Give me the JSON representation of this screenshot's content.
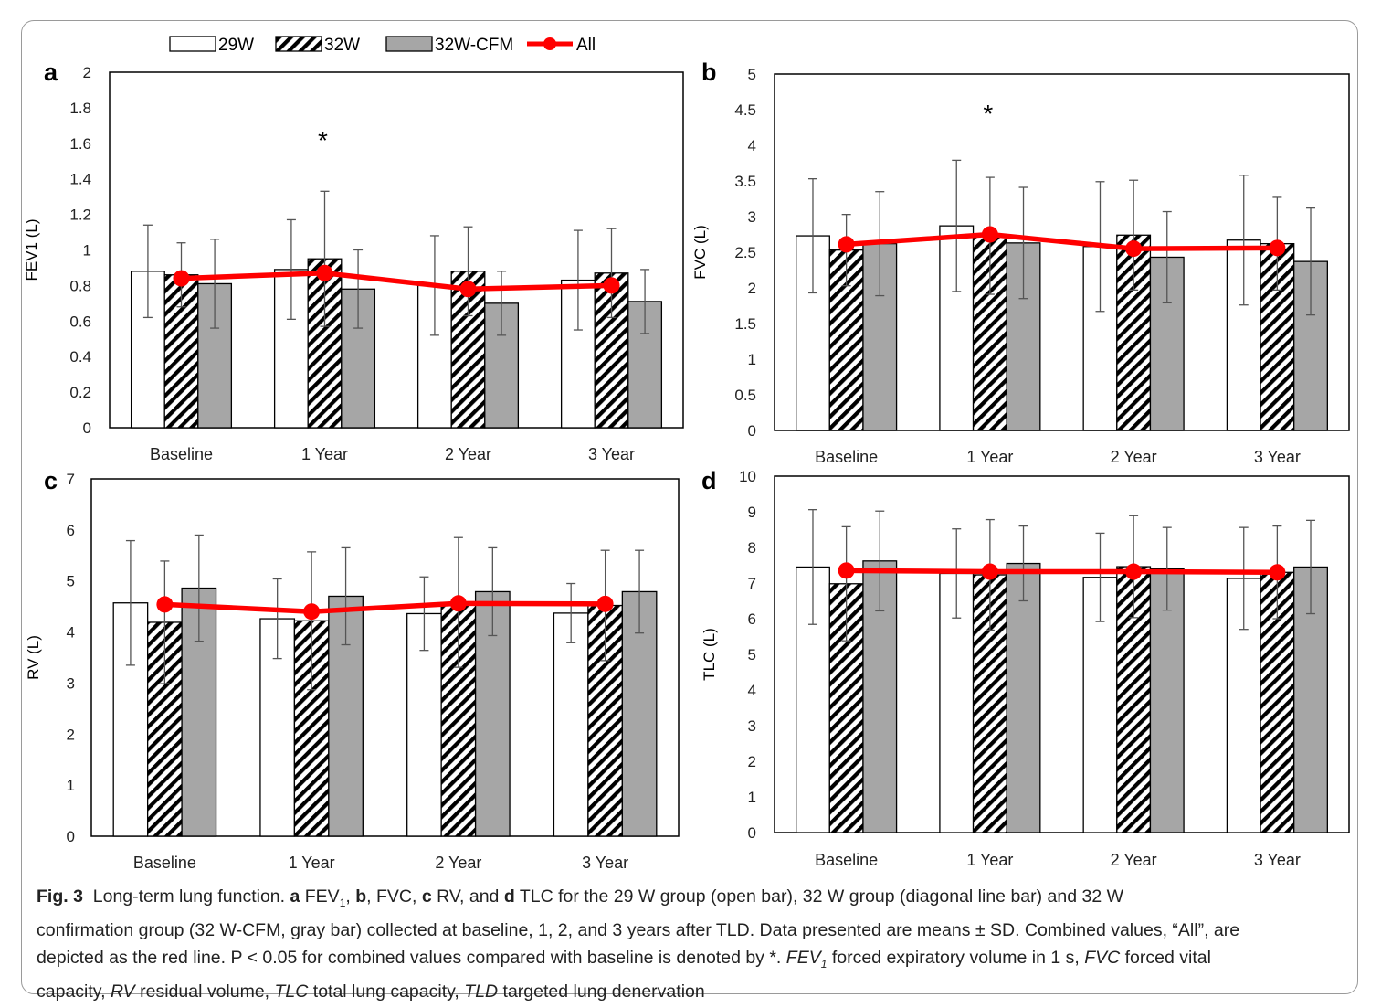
{
  "legend": {
    "items": [
      {
        "label": "29W",
        "kind": "open"
      },
      {
        "label": "32W",
        "kind": "hatch"
      },
      {
        "label": "32W-CFM",
        "kind": "gray"
      },
      {
        "label": "All",
        "kind": "line"
      }
    ]
  },
  "colors": {
    "open": "#ffffff",
    "gray": "#a6a6a6",
    "line": "#ff0000",
    "axis": "#000000"
  },
  "chart_data": [
    {
      "panel": "a",
      "type": "bar",
      "ylabel": "FEV1 (L)",
      "ylim": [
        0,
        2
      ],
      "yticks": [
        "0",
        "0.2",
        "0.4",
        "0.6",
        "0.8",
        "1",
        "1.2",
        "1.4",
        "1.6",
        "1.8",
        "2"
      ],
      "categories": [
        "Baseline",
        "1 Year",
        "2 Year",
        "3 Year"
      ],
      "series": [
        {
          "name": "29W",
          "values": [
            0.88,
            0.89,
            0.8,
            0.83
          ],
          "sd": [
            0.26,
            0.28,
            0.28,
            0.28
          ]
        },
        {
          "name": "32W",
          "values": [
            0.86,
            0.95,
            0.88,
            0.87
          ],
          "sd": [
            0.18,
            0.38,
            0.25,
            0.25
          ]
        },
        {
          "name": "32W-CFM",
          "values": [
            0.81,
            0.78,
            0.7,
            0.71
          ],
          "sd": [
            0.25,
            0.22,
            0.18,
            0.18
          ]
        }
      ],
      "line": {
        "name": "All",
        "values": [
          0.84,
          0.87,
          0.78,
          0.8
        ]
      },
      "annotations": [
        {
          "category": "1 Year",
          "text": "*",
          "y": 1.64
        }
      ]
    },
    {
      "panel": "b",
      "type": "bar",
      "ylabel": "FVC (L)",
      "ylim": [
        0,
        5
      ],
      "yticks": [
        "0",
        "0.5",
        "1",
        "1.5",
        "2",
        "2.5",
        "3",
        "3.5",
        "4",
        "4.5",
        "5"
      ],
      "categories": [
        "Baseline",
        "1 Year",
        "2 Year",
        "3 Year"
      ],
      "series": [
        {
          "name": "29W",
          "values": [
            2.73,
            2.87,
            2.58,
            2.67
          ],
          "sd": [
            0.8,
            0.92,
            0.91,
            0.91
          ]
        },
        {
          "name": "32W",
          "values": [
            2.53,
            2.73,
            2.74,
            2.62
          ],
          "sd": [
            0.5,
            0.82,
            0.77,
            0.65
          ]
        },
        {
          "name": "32W-CFM",
          "values": [
            2.62,
            2.63,
            2.43,
            2.37
          ],
          "sd": [
            0.73,
            0.78,
            0.64,
            0.75
          ]
        }
      ],
      "line": {
        "name": "All",
        "values": [
          2.61,
          2.75,
          2.55,
          2.56
        ]
      },
      "annotations": [
        {
          "category": "1 Year",
          "text": "*",
          "y": 4.5
        }
      ]
    },
    {
      "panel": "c",
      "type": "bar",
      "ylabel": "RV (L)",
      "ylim": [
        0,
        7
      ],
      "yticks": [
        "0",
        "1",
        "2",
        "3",
        "4",
        "5",
        "6",
        "7"
      ],
      "categories": [
        "Baseline",
        "1 Year",
        "2 Year",
        "3 Year"
      ],
      "series": [
        {
          "name": "29W",
          "values": [
            4.57,
            4.26,
            4.36,
            4.37
          ],
          "sd": [
            1.22,
            0.78,
            0.72,
            0.58
          ]
        },
        {
          "name": "32W",
          "values": [
            4.19,
            4.22,
            4.58,
            4.52
          ],
          "sd": [
            1.2,
            1.35,
            1.27,
            1.08
          ]
        },
        {
          "name": "32W-CFM",
          "values": [
            4.86,
            4.7,
            4.79,
            4.79
          ],
          "sd": [
            1.04,
            0.95,
            0.86,
            0.81
          ]
        }
      ],
      "line": {
        "name": "All",
        "values": [
          4.54,
          4.4,
          4.56,
          4.55
        ]
      },
      "annotations": []
    },
    {
      "panel": "d",
      "type": "bar",
      "ylabel": "TLC (L)",
      "ylim": [
        0,
        10
      ],
      "yticks": [
        "0",
        "1",
        "2",
        "3",
        "4",
        "5",
        "6",
        "7",
        "8",
        "9",
        "10"
      ],
      "categories": [
        "Baseline",
        "1 Year",
        "2 Year",
        "3 Year"
      ],
      "series": [
        {
          "name": "29W",
          "values": [
            7.45,
            7.27,
            7.16,
            7.13
          ],
          "sd": [
            1.61,
            1.25,
            1.24,
            1.43
          ]
        },
        {
          "name": "32W",
          "values": [
            6.98,
            7.23,
            7.46,
            7.3
          ],
          "sd": [
            1.6,
            1.55,
            1.43,
            1.3
          ]
        },
        {
          "name": "32W-CFM",
          "values": [
            7.62,
            7.55,
            7.4,
            7.45
          ],
          "sd": [
            1.4,
            1.05,
            1.16,
            1.31
          ]
        }
      ],
      "line": {
        "name": "All",
        "values": [
          7.35,
          7.32,
          7.32,
          7.3
        ]
      },
      "annotations": []
    }
  ],
  "caption": {
    "fig_label": "Fig. 3",
    "title": "Long-term lung function.",
    "line1_rest": "for the 29 W group (open bar), 32 W group (diagonal line bar) and 32 W",
    "line2": "confirmation group (32 W-CFM, gray bar) collected at baseline, 1, 2, and 3 years after TLD. Data presented are means ± SD. Combined values, “All”, are",
    "line3": "depicted as the red line. P < 0.05 for combined values compared with baseline is denoted by *.",
    "line3_abbr": "forced expiratory volume in 1 s,",
    "line3_fvc": "forced vital",
    "line4": "capacity,",
    "line4_rv": "residual volume,",
    "line4_tlc": "total lung capacity,",
    "line4_tld": "targeted lung denervation"
  }
}
